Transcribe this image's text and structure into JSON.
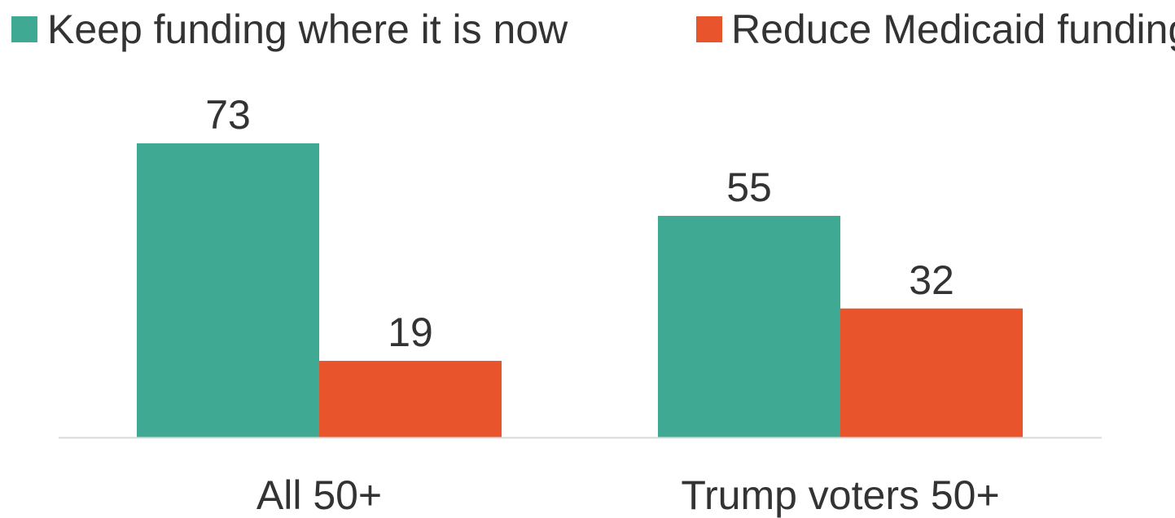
{
  "chart_data": {
    "type": "bar",
    "categories": [
      "All 50+",
      "Trump voters 50+"
    ],
    "series": [
      {
        "name": "Keep funding where it is now",
        "values": [
          73,
          19
        ],
        "color": "#3fa993"
      },
      {
        "name": "Reduce Medicaid funding",
        "values": [
          55,
          32
        ],
        "color": "#e8552c"
      }
    ],
    "series_by_category": true,
    "ylim": [
      0,
      100
    ],
    "grid": false,
    "legend_position": "top",
    "data_labels": true,
    "baseline_color": "#d9d9d9"
  }
}
